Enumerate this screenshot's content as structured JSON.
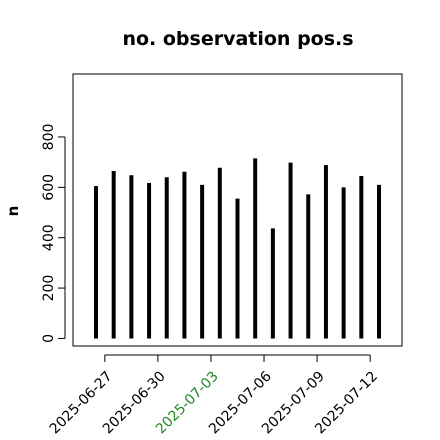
{
  "chart_data": {
    "type": "bar",
    "title": "no. observation pos.s",
    "xlabel": "",
    "ylabel": "n",
    "ylim": [
      -30,
      1050
    ],
    "yticks": [
      0,
      200,
      400,
      600,
      800
    ],
    "ytick_labels": [
      "0",
      "200",
      "400",
      "600",
      "800"
    ],
    "xticks": [
      {
        "label": "2025-06-27",
        "position": 1.5,
        "color": "#000000"
      },
      {
        "label": "2025-06-30",
        "position": 4.5,
        "color": "#000000"
      },
      {
        "label": "2025-07-03",
        "position": 7.5,
        "color": "#228b22"
      },
      {
        "label": "2025-07-06",
        "position": 10.5,
        "color": "#000000"
      },
      {
        "label": "2025-07-09",
        "position": 13.5,
        "color": "#000000"
      },
      {
        "label": "2025-07-12",
        "position": 16.5,
        "color": "#000000"
      }
    ],
    "x_range": [
      -0.3,
      18.3
    ],
    "x": [
      1,
      2,
      3,
      4,
      5,
      6,
      7,
      8,
      9,
      10,
      11,
      12,
      13,
      14,
      15,
      16,
      17
    ],
    "values": [
      605,
      665,
      648,
      617,
      640,
      662,
      610,
      678,
      555,
      715,
      437,
      698,
      572,
      688,
      600,
      645,
      610
    ],
    "bar_color": "#000000",
    "grid": false
  }
}
